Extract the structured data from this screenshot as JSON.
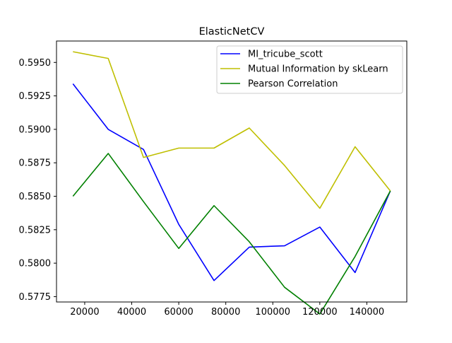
{
  "chart_data": {
    "type": "line",
    "title": "ElasticNetCV",
    "xlabel": "",
    "ylabel": "",
    "xlim": [
      8000,
      157000
    ],
    "ylim": [
      0.5771,
      0.5966
    ],
    "xticks": [
      {
        "value": 20000,
        "label": "20000"
      },
      {
        "value": 40000,
        "label": "40000"
      },
      {
        "value": 60000,
        "label": "60000"
      },
      {
        "value": 80000,
        "label": "80000"
      },
      {
        "value": 100000,
        "label": "100000"
      },
      {
        "value": 120000,
        "label": "120000"
      },
      {
        "value": 140000,
        "label": "140000"
      }
    ],
    "yticks": [
      {
        "value": 0.5775,
        "label": "0.5775"
      },
      {
        "value": 0.58,
        "label": "0.5800"
      },
      {
        "value": 0.5825,
        "label": "0.5825"
      },
      {
        "value": 0.585,
        "label": "0.5850"
      },
      {
        "value": 0.5875,
        "label": "0.5875"
      },
      {
        "value": 0.59,
        "label": "0.5900"
      },
      {
        "value": 0.5925,
        "label": "0.5925"
      },
      {
        "value": 0.595,
        "label": "0.5950"
      }
    ],
    "grid": false,
    "legend_position": "top-right",
    "x": [
      15000,
      30000,
      45000,
      60000,
      75000,
      90000,
      105000,
      120000,
      135000,
      150000
    ],
    "series": [
      {
        "name": "MI_tricube_scott",
        "color": "#0000ff",
        "values": [
          0.5934,
          0.59,
          0.5885,
          0.5829,
          0.5787,
          0.5812,
          0.5813,
          0.5827,
          0.5793,
          0.5854
        ]
      },
      {
        "name": "Mutual Information by skLearn",
        "color": "#bfbf00",
        "values": [
          0.5958,
          0.5953,
          0.5879,
          0.5886,
          0.5886,
          0.5901,
          0.5873,
          0.5841,
          0.5887,
          0.5854
        ]
      },
      {
        "name": "Pearson Correlation",
        "color": "#008000",
        "values": [
          0.585,
          0.5882,
          0.5846,
          0.5811,
          0.5843,
          0.5816,
          0.5782,
          0.5762,
          0.5805,
          0.5854
        ]
      }
    ]
  }
}
